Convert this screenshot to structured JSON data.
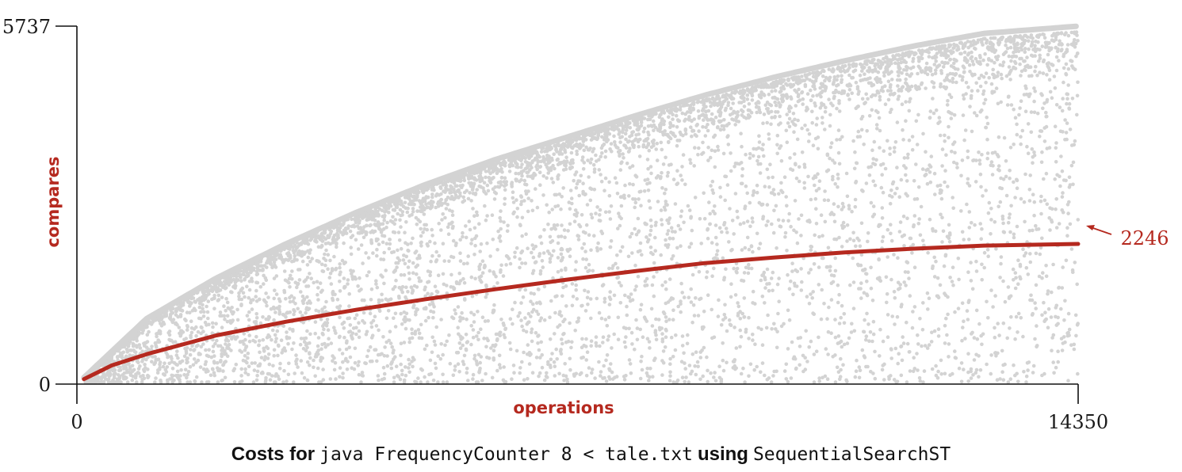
{
  "chart_data": {
    "type": "scatter",
    "title": "",
    "xlabel": "operations",
    "ylabel": "compares",
    "xlim": [
      0,
      14350
    ],
    "ylim": [
      0,
      5737
    ],
    "x_ticks": [
      "0",
      "14350"
    ],
    "y_ticks": [
      "0",
      "5737"
    ],
    "grid": false,
    "series": [
      {
        "role": "individual costs",
        "color": "#d3d3d3",
        "upper_envelope": {
          "x": [
            0,
            1000,
            2000,
            3000,
            4000,
            5000,
            6000,
            7000,
            8000,
            9000,
            10000,
            11000,
            12000,
            13000,
            14350
          ],
          "y": [
            0,
            1050,
            1700,
            2250,
            2750,
            3200,
            3600,
            3950,
            4300,
            4630,
            4920,
            5180,
            5420,
            5620,
            5737
          ]
        }
      },
      {
        "role": "cumulative average",
        "color": "#b5291f",
        "x": [
          100,
          500,
          1000,
          2000,
          3000,
          4000,
          5000,
          6000,
          7000,
          8000,
          9000,
          10000,
          11000,
          12000,
          13000,
          14350
        ],
        "y": [
          80,
          300,
          480,
          780,
          1000,
          1190,
          1360,
          1520,
          1670,
          1810,
          1940,
          2030,
          2110,
          2170,
          2220,
          2246
        ]
      }
    ],
    "annotations": [
      {
        "text": "2246",
        "x": 14350,
        "y": 2246,
        "color": "#b5291f"
      }
    ]
  },
  "caption": {
    "part1": "Costs for",
    "part2": "java FrequencyCounter 8 < tale.txt",
    "part3": "using",
    "part4": "SequentialSearchST"
  }
}
